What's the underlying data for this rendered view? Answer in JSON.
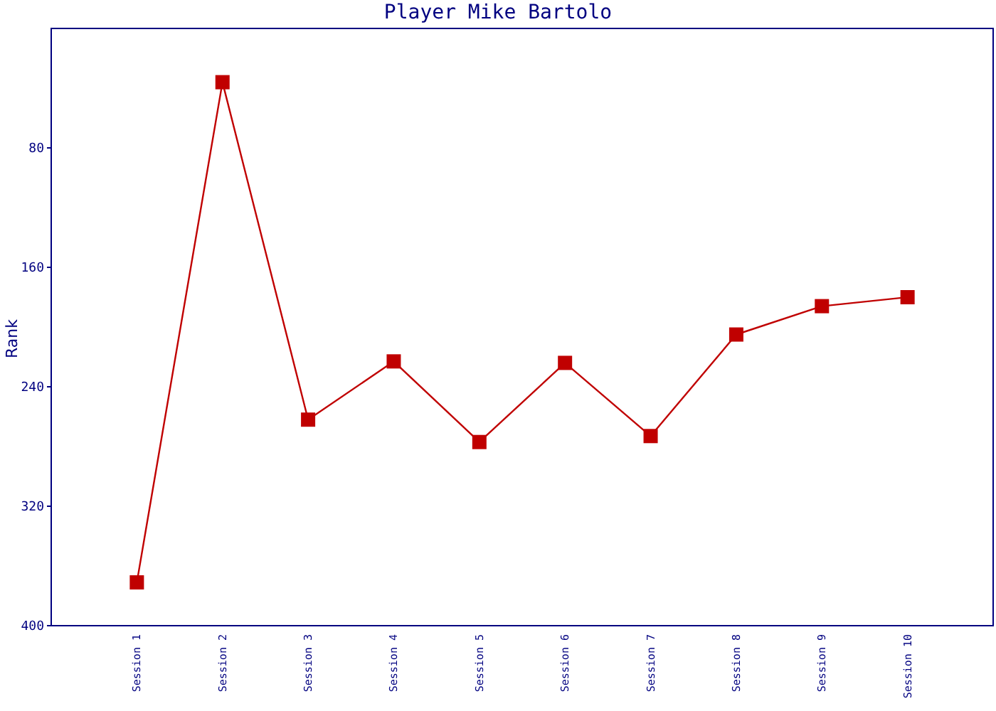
{
  "chart_data": {
    "type": "line",
    "title": "Player Mike Bartolo",
    "ylabel": "Rank",
    "categories": [
      "Session 1",
      "Session 2",
      "Session 3",
      "Session 4",
      "Session 5",
      "Session 6",
      "Session 7",
      "Session 8",
      "Session 9",
      "Session 10"
    ],
    "series": [
      {
        "color": "#c00000",
        "values": [
          371,
          36,
          262,
          223,
          277,
          224,
          273,
          205,
          186,
          180
        ]
      }
    ],
    "ylim": [
      400,
      0
    ],
    "yticks": [
      80,
      160,
      240,
      320,
      400
    ],
    "grid": false,
    "legend": false,
    "marker": "square",
    "line_style": "solid"
  }
}
